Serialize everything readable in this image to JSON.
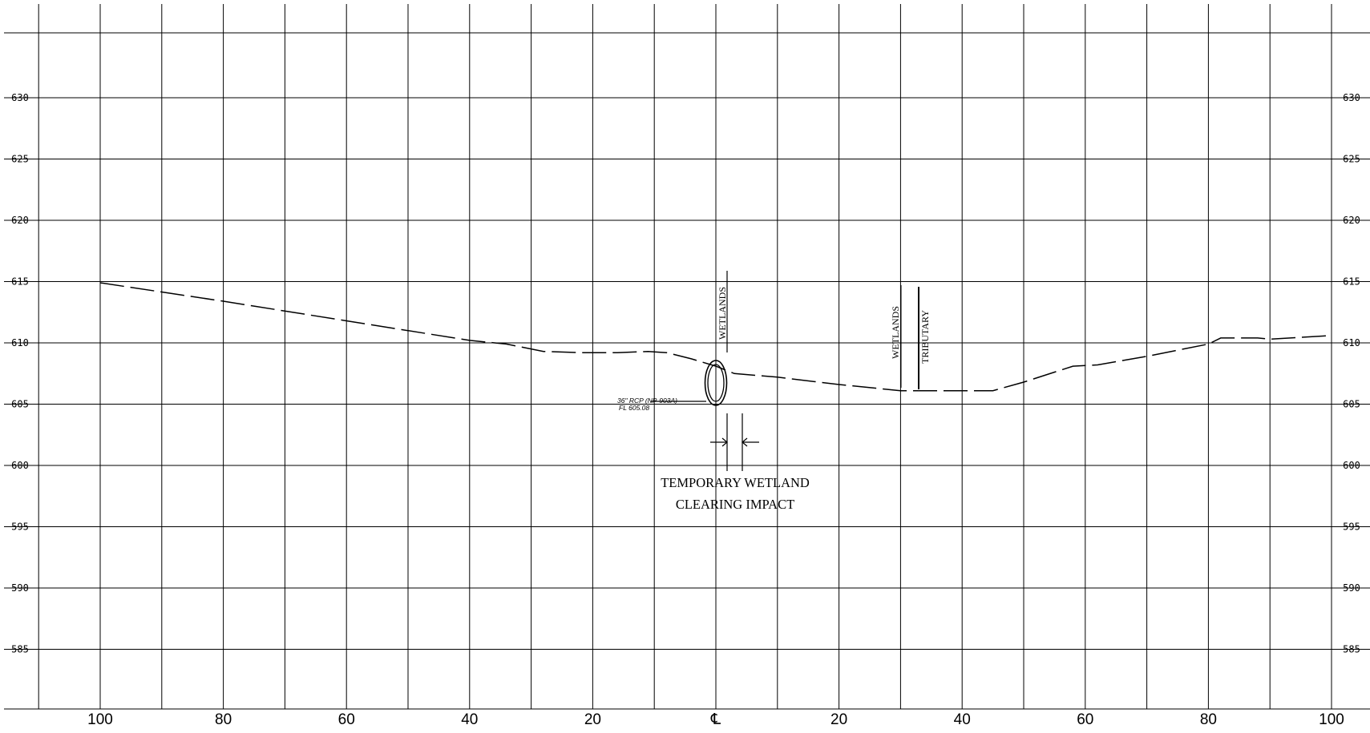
{
  "drawing": {
    "elevation_labels": [
      "630",
      "625",
      "620",
      "615",
      "610",
      "605",
      "600",
      "595",
      "590",
      "585"
    ],
    "station_labels": [
      "100",
      "80",
      "60",
      "40",
      "20",
      "℄",
      "20",
      "40",
      "60",
      "80",
      "100"
    ],
    "wetlands_label_left": "WETLANDS",
    "wetlands_label_right": "WETLANDS",
    "tributary_label": "TRIBUTARY",
    "pipe_callout_line1": "36\" RCP  (NP-903A)",
    "pipe_callout_line2": "FL 605.08",
    "impact_label_line1": "TEMPORARY WETLAND",
    "impact_label_line2": "CLEARING IMPACT"
  },
  "chart_data": {
    "type": "line",
    "x_range": [
      -110,
      110
    ],
    "y_range": [
      582,
      636
    ],
    "x_ticks": [
      -100,
      -80,
      -60,
      -40,
      -20,
      0,
      20,
      40,
      60,
      80,
      100
    ],
    "y_ticks": [
      630,
      625,
      620,
      615,
      610,
      605,
      600,
      595,
      590,
      585
    ],
    "grid": true,
    "series": [
      {
        "style": "dashed",
        "x": [
          -100,
          -80,
          -60,
          -40,
          -34,
          -28,
          -22,
          -16,
          -11,
          -8,
          -4,
          0,
          3,
          10,
          20,
          30,
          33,
          40,
          45,
          50,
          58,
          62,
          70,
          80,
          82,
          84,
          88,
          90,
          100
        ],
        "y": [
          614.9,
          613.4,
          611.8,
          610.2,
          609.9,
          609.3,
          609.2,
          609.2,
          609.3,
          609.2,
          608.7,
          608.1,
          607.5,
          607.2,
          606.6,
          606.1,
          606.1,
          606.1,
          606.1,
          606.8,
          608.1,
          608.2,
          608.9,
          609.9,
          610.4,
          610.4,
          610.4,
          610.3,
          610.6
        ]
      }
    ],
    "pipe": {
      "x": 0,
      "flowline_elevation": 605.08
    },
    "wetlands_limits_x": [
      1.7,
      30
    ],
    "tributary_x": 33,
    "impact_limits_x": [
      1.7,
      4.2
    ]
  }
}
